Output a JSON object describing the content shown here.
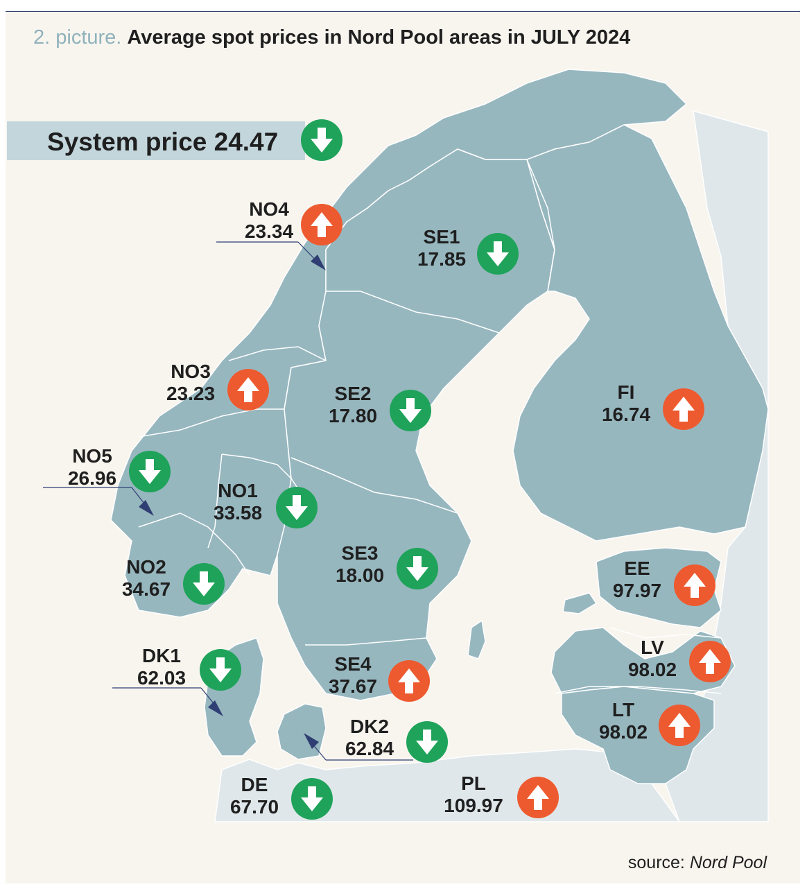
{
  "title": {
    "prefix": "2. picture.",
    "main": "Average spot prices in Nord Pool areas in JULY 2024"
  },
  "system": {
    "label": "System price 24.47",
    "trend": "down"
  },
  "colors": {
    "down": "#1fa35a",
    "up": "#ee5a30",
    "land": "#97b7bf",
    "outside_land": "#dfe7ea",
    "sea": "#f8f5ef"
  },
  "areas": [
    {
      "code": "NO4",
      "price": "23.34",
      "trend": "up"
    },
    {
      "code": "SE1",
      "price": "17.85",
      "trend": "down"
    },
    {
      "code": "NO3",
      "price": "23.23",
      "trend": "up"
    },
    {
      "code": "SE2",
      "price": "17.80",
      "trend": "down"
    },
    {
      "code": "FI",
      "price": "16.74",
      "trend": "up"
    },
    {
      "code": "NO5",
      "price": "26.96",
      "trend": "down"
    },
    {
      "code": "NO1",
      "price": "33.58",
      "trend": "down"
    },
    {
      "code": "SE3",
      "price": "18.00",
      "trend": "down"
    },
    {
      "code": "NO2",
      "price": "34.67",
      "trend": "down"
    },
    {
      "code": "EE",
      "price": "97.97",
      "trend": "up"
    },
    {
      "code": "LV",
      "price": "98.02",
      "trend": "up"
    },
    {
      "code": "DK1",
      "price": "62.03",
      "trend": "down"
    },
    {
      "code": "SE4",
      "price": "37.67",
      "trend": "up"
    },
    {
      "code": "LT",
      "price": "98.02",
      "trend": "up"
    },
    {
      "code": "DK2",
      "price": "62.84",
      "trend": "down"
    },
    {
      "code": "DE",
      "price": "67.70",
      "trend": "down"
    },
    {
      "code": "PL",
      "price": "109.97",
      "trend": "up"
    }
  ],
  "source": {
    "prefix": "source:",
    "name": "Nord Pool"
  }
}
